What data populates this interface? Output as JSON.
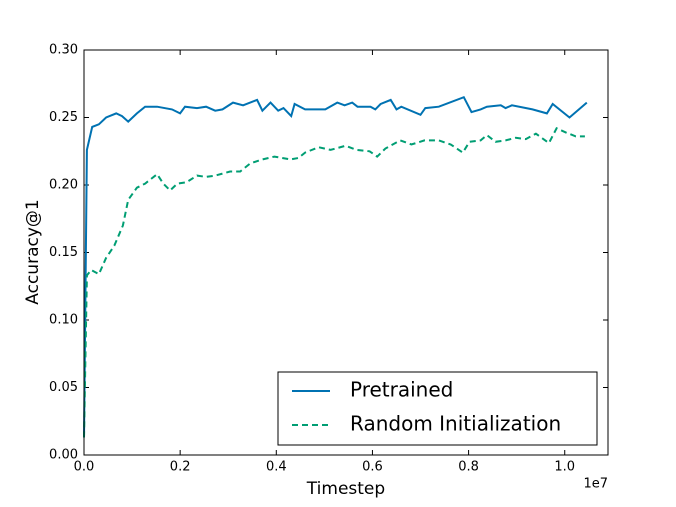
{
  "chart_data": {
    "type": "line",
    "xlabel": "Timestep",
    "ylabel": "Accuracy@1",
    "x_offset_label": "1e7",
    "xlim": [
      0,
      10900000
    ],
    "ylim": [
      0,
      0.3
    ],
    "xticks": [
      {
        "value": 0,
        "label": "0.0"
      },
      {
        "value": 2000000,
        "label": "0.2"
      },
      {
        "value": 4000000,
        "label": "0.4"
      },
      {
        "value": 6000000,
        "label": "0.6"
      },
      {
        "value": 8000000,
        "label": "0.8"
      },
      {
        "value": 10000000,
        "label": "1.0"
      }
    ],
    "yticks": [
      {
        "value": 0,
        "label": "0.00"
      },
      0.05,
      {
        "value": 0.1,
        "label": "0.10"
      },
      0.15,
      {
        "value": 0.2,
        "label": "0.20"
      },
      0.25,
      {
        "value": 0.3,
        "label": "0.30"
      }
    ],
    "legend": "lower right",
    "series": [
      {
        "name": "Pretrained",
        "color": "#0072b2",
        "style": "solid",
        "x": [
          0,
          60000,
          170000,
          310000,
          460000,
          670000,
          790000,
          920000,
          1100000,
          1270000,
          1520000,
          1830000,
          2000000,
          2100000,
          2350000,
          2540000,
          2730000,
          2880000,
          3100000,
          3310000,
          3600000,
          3710000,
          3880000,
          4040000,
          4150000,
          4310000,
          4380000,
          4600000,
          5020000,
          5270000,
          5420000,
          5580000,
          5690000,
          5960000,
          6060000,
          6170000,
          6380000,
          6500000,
          6600000,
          7000000,
          7100000,
          7380000,
          7900000,
          8060000,
          8250000,
          8380000,
          8670000,
          8770000,
          8900000,
          9330000,
          9630000,
          9750000,
          10100000,
          10460000
        ],
        "values": [
          0.013,
          0.226,
          0.243,
          0.245,
          0.25,
          0.253,
          0.251,
          0.247,
          0.253,
          0.258,
          0.258,
          0.256,
          0.253,
          0.258,
          0.257,
          0.258,
          0.255,
          0.256,
          0.261,
          0.259,
          0.263,
          0.255,
          0.261,
          0.255,
          0.257,
          0.251,
          0.26,
          0.256,
          0.256,
          0.261,
          0.259,
          0.261,
          0.258,
          0.258,
          0.256,
          0.26,
          0.263,
          0.256,
          0.258,
          0.252,
          0.257,
          0.258,
          0.265,
          0.254,
          0.256,
          0.258,
          0.259,
          0.257,
          0.259,
          0.256,
          0.253,
          0.26,
          0.25,
          0.261
        ]
      },
      {
        "name": "Random Initialization",
        "color": "#009e73",
        "style": "dashed",
        "x": [
          0,
          60000,
          150000,
          310000,
          460000,
          630000,
          810000,
          920000,
          1100000,
          1270000,
          1520000,
          1650000,
          1790000,
          1940000,
          2130000,
          2350000,
          2540000,
          2730000,
          3040000,
          3250000,
          3460000,
          3710000,
          3960000,
          4290000,
          4460000,
          4600000,
          4880000,
          5130000,
          5440000,
          5670000,
          5940000,
          6100000,
          6270000,
          6580000,
          6810000,
          7080000,
          7380000,
          7630000,
          7880000,
          8020000,
          8250000,
          8380000,
          8560000,
          8770000,
          8980000,
          9190000,
          9400000,
          9670000,
          9830000,
          10020000,
          10230000,
          10420000
        ],
        "values": [
          0.013,
          0.133,
          0.137,
          0.134,
          0.146,
          0.155,
          0.17,
          0.189,
          0.198,
          0.201,
          0.208,
          0.201,
          0.196,
          0.201,
          0.202,
          0.207,
          0.206,
          0.207,
          0.21,
          0.21,
          0.216,
          0.219,
          0.221,
          0.219,
          0.22,
          0.224,
          0.228,
          0.226,
          0.229,
          0.226,
          0.225,
          0.221,
          0.227,
          0.233,
          0.23,
          0.233,
          0.233,
          0.23,
          0.224,
          0.232,
          0.233,
          0.237,
          0.232,
          0.233,
          0.235,
          0.234,
          0.238,
          0.231,
          0.242,
          0.239,
          0.236,
          0.236
        ]
      }
    ]
  }
}
